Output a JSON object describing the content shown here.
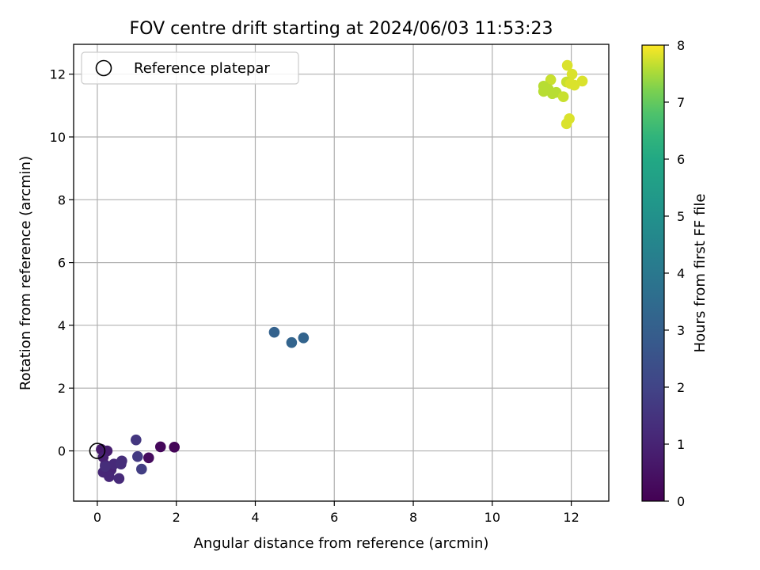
{
  "chart_data": {
    "type": "scatter",
    "title": "FOV centre drift starting at 2024/06/03 11:53:23",
    "xlabel": "Angular distance from reference (arcmin)",
    "ylabel": "Rotation from reference (arcmin)",
    "xlim": [
      -0.6,
      12.95
    ],
    "ylim": [
      -1.6,
      12.95
    ],
    "xticks": [
      0,
      2,
      4,
      6,
      8,
      10,
      12
    ],
    "yticks": [
      0,
      2,
      4,
      6,
      8,
      10,
      12
    ],
    "grid": true,
    "legend": {
      "position": "top-left",
      "entries": [
        "Reference platepar"
      ]
    },
    "reference": {
      "x": 0,
      "y": 0,
      "label": "Reference platepar"
    },
    "colorbar": {
      "label": "Hours from first FF file",
      "range": [
        0,
        8
      ],
      "ticks": [
        0,
        1,
        2,
        3,
        4,
        5,
        6,
        7,
        8
      ],
      "colormap": "viridis"
    },
    "points": [
      {
        "x": 1.95,
        "y": 0.12,
        "t": 0.1
      },
      {
        "x": 1.6,
        "y": 0.13,
        "t": 0.2
      },
      {
        "x": 1.3,
        "y": -0.22,
        "t": 0.3
      },
      {
        "x": 0.1,
        "y": 0.05,
        "t": 0.7
      },
      {
        "x": 0.25,
        "y": 0.0,
        "t": 0.8
      },
      {
        "x": 0.15,
        "y": -0.2,
        "t": 0.9
      },
      {
        "x": 0.2,
        "y": -0.45,
        "t": 1.0
      },
      {
        "x": 0.35,
        "y": -0.6,
        "t": 1.0
      },
      {
        "x": 0.15,
        "y": -0.68,
        "t": 1.1
      },
      {
        "x": 0.3,
        "y": -0.82,
        "t": 1.1
      },
      {
        "x": 0.42,
        "y": -0.42,
        "t": 1.2
      },
      {
        "x": 0.55,
        "y": -0.88,
        "t": 1.2
      },
      {
        "x": 0.6,
        "y": -0.42,
        "t": 1.3
      },
      {
        "x": 0.62,
        "y": -0.32,
        "t": 1.3
      },
      {
        "x": 0.2,
        "y": -0.5,
        "t": 1.3
      },
      {
        "x": 0.98,
        "y": 0.35,
        "t": 1.6
      },
      {
        "x": 1.02,
        "y": -0.18,
        "t": 1.7
      },
      {
        "x": 1.12,
        "y": -0.58,
        "t": 1.8
      },
      {
        "x": 4.48,
        "y": 3.78,
        "t": 3.1
      },
      {
        "x": 4.92,
        "y": 3.45,
        "t": 3.2
      },
      {
        "x": 5.22,
        "y": 3.6,
        "t": 3.2
      },
      {
        "x": 11.9,
        "y": 12.28,
        "t": 7.8
      },
      {
        "x": 12.02,
        "y": 12.0,
        "t": 7.8
      },
      {
        "x": 11.48,
        "y": 11.82,
        "t": 7.7
      },
      {
        "x": 12.28,
        "y": 11.78,
        "t": 7.8
      },
      {
        "x": 11.88,
        "y": 11.75,
        "t": 7.7
      },
      {
        "x": 11.98,
        "y": 11.7,
        "t": 7.8
      },
      {
        "x": 12.08,
        "y": 11.65,
        "t": 7.8
      },
      {
        "x": 11.3,
        "y": 11.62,
        "t": 7.6
      },
      {
        "x": 11.42,
        "y": 11.52,
        "t": 7.6
      },
      {
        "x": 11.3,
        "y": 11.45,
        "t": 7.6
      },
      {
        "x": 11.62,
        "y": 11.42,
        "t": 7.6
      },
      {
        "x": 11.52,
        "y": 11.38,
        "t": 7.6
      },
      {
        "x": 11.8,
        "y": 11.28,
        "t": 7.7
      },
      {
        "x": 11.95,
        "y": 10.58,
        "t": 7.8
      },
      {
        "x": 11.88,
        "y": 10.42,
        "t": 7.8
      }
    ]
  }
}
